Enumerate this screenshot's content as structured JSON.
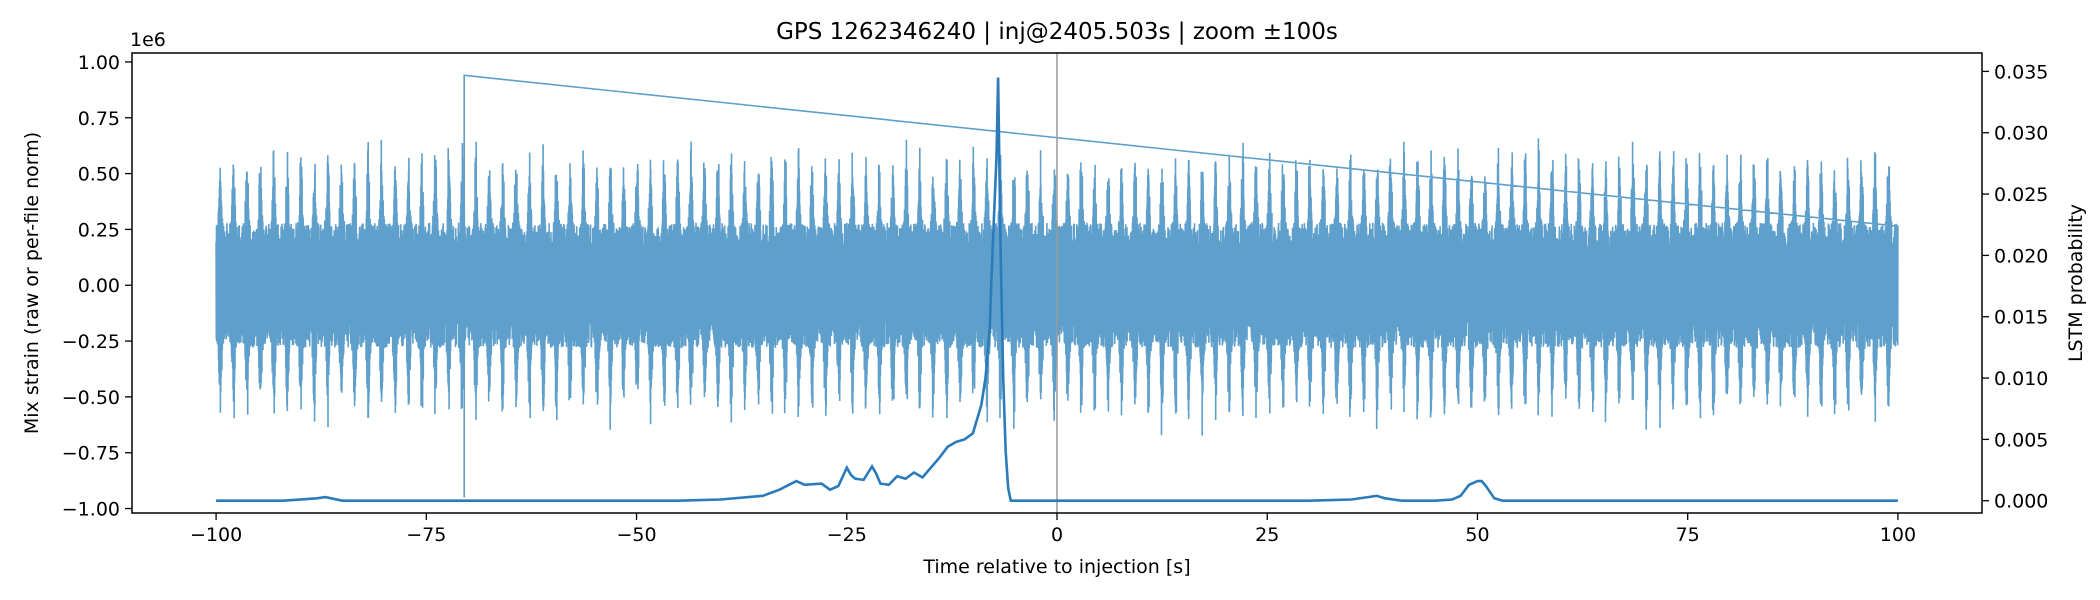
{
  "chart_data": {
    "type": "line",
    "title": "GPS 1262346240 | inj@2405.503s | zoom ±100s",
    "xlabel": "Time relative to injection [s]",
    "ylabel_left": "Mix strain (raw or per-file norm)",
    "ylabel_right": "LSTM probability",
    "left_axis_offset": "1e6",
    "xlim": [
      -110,
      110
    ],
    "ylim_left": [
      -1.02,
      1.04
    ],
    "ylim_right": [
      -0.001,
      0.0365
    ],
    "x_ticks": [
      -100,
      -75,
      -50,
      -25,
      0,
      25,
      50,
      75,
      100
    ],
    "x_tick_labels": [
      "−100",
      "−75",
      "−50",
      "−25",
      "0",
      "25",
      "50",
      "75",
      "100"
    ],
    "y_left_ticks": [
      -1.0,
      -0.75,
      -0.5,
      -0.25,
      0.0,
      0.25,
      0.5,
      0.75,
      1.0
    ],
    "y_left_tick_labels": [
      "−1.00",
      "−0.75",
      "−0.50",
      "−0.25",
      "0.00",
      "0.25",
      "0.50",
      "0.75",
      "1.00"
    ],
    "y_right_ticks": [
      0.0,
      0.005,
      0.01,
      0.015,
      0.02,
      0.025,
      0.03,
      0.035
    ],
    "y_right_tick_labels": [
      "0.000",
      "0.005",
      "0.010",
      "0.015",
      "0.020",
      "0.025",
      "0.030",
      "0.035"
    ],
    "injection_marker_x": 0,
    "series": [
      {
        "name": "Mix strain",
        "axis": "left",
        "color": "#5f9fcb",
        "x_range": [
          -100,
          100
        ],
        "oscillation_period_s": 1.6,
        "envelope_typical": 0.68,
        "inner_band": 0.28,
        "spikes": [
          {
            "x": -70.5,
            "value": 0.94
          },
          {
            "x": -70.5,
            "value": -0.95
          }
        ]
      },
      {
        "name": "LSTM probability",
        "axis": "right",
        "color": "#2b7bba",
        "x": [
          -100,
          -92,
          -88,
          -87,
          -85,
          -75,
          -60,
          -45,
          -40,
          -35,
          -33,
          -31,
          -30,
          -28,
          -27,
          -26,
          -25,
          -24.5,
          -24,
          -23,
          -22,
          -21.5,
          -21,
          -20,
          -19,
          -18,
          -17,
          -16,
          -15,
          -14,
          -13,
          -12,
          -11,
          -10,
          -9,
          -8.5,
          -8,
          -7.8,
          -7.5,
          -7.2,
          -7,
          -6.7,
          -6.4,
          -6.1,
          -5.8,
          -5.5,
          -5,
          -4,
          0,
          10,
          20,
          30,
          35,
          37,
          38,
          39,
          41,
          45,
          47,
          48,
          49,
          50,
          50.5,
          51,
          52,
          53,
          60,
          70,
          80,
          90,
          100
        ],
        "y": [
          0.0,
          0.0,
          0.0002,
          0.0003,
          0.0,
          0.0,
          0.0,
          0.0,
          0.0001,
          0.0004,
          0.0009,
          0.0016,
          0.0013,
          0.0014,
          0.0009,
          0.0012,
          0.0027,
          0.0021,
          0.0018,
          0.0017,
          0.0028,
          0.0022,
          0.0014,
          0.0013,
          0.002,
          0.0018,
          0.0023,
          0.0019,
          0.0027,
          0.0035,
          0.0044,
          0.0048,
          0.005,
          0.0055,
          0.0078,
          0.01,
          0.014,
          0.018,
          0.023,
          0.028,
          0.0345,
          0.02,
          0.01,
          0.004,
          0.001,
          0.0,
          0.0,
          0.0,
          0.0,
          0.0,
          0.0,
          0.0,
          0.0001,
          0.0003,
          0.0004,
          0.0002,
          0.0,
          0.0,
          0.0001,
          0.0004,
          0.0013,
          0.0016,
          0.0016,
          0.0012,
          0.0002,
          0.0,
          0.0,
          0.0,
          0.0,
          0.0,
          0.0
        ]
      }
    ]
  }
}
